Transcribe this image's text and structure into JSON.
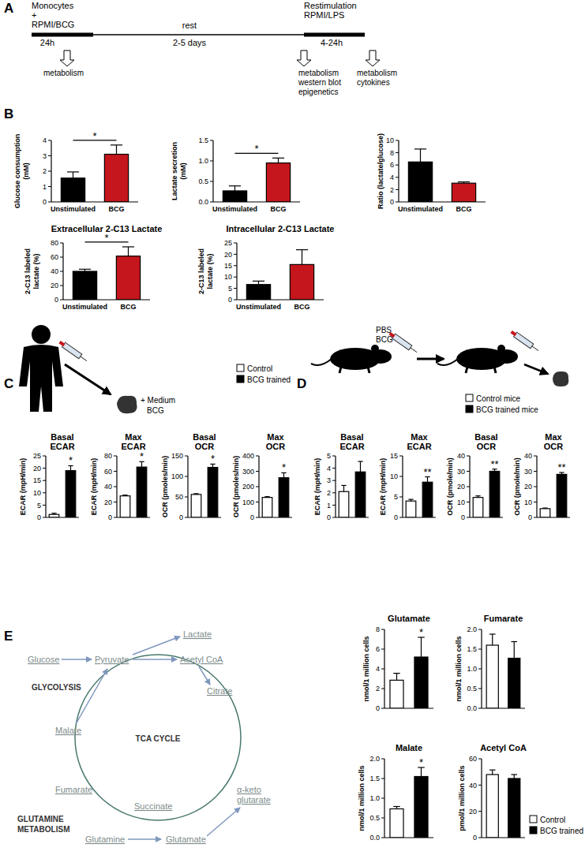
{
  "figure": {
    "panels": [
      "A",
      "B",
      "C",
      "D",
      "E"
    ],
    "timeline": {
      "start": [
        "Monocytes",
        "+",
        "RPMI/BCG"
      ],
      "restim": [
        "Restimulation",
        "RPMI/LPS"
      ],
      "rest": "rest",
      "durations": [
        "24h",
        "2-5 days",
        "4-24h"
      ],
      "readouts": [
        [
          "metabolism"
        ],
        [
          "metabolism",
          "western blot",
          "epigenetics"
        ],
        [
          "metabolism",
          "cytokines"
        ]
      ]
    },
    "human": {
      "labels": [
        "+ Medium",
        "BCG"
      ]
    },
    "mouse": {
      "labels": [
        "PBS",
        "BCG"
      ]
    },
    "legends": [
      [
        {
          "name": "Control",
          "color": "#ffffff"
        },
        {
          "name": "BCG trained",
          "color": "#000000"
        }
      ],
      [
        {
          "name": "Control mice",
          "color": "#ffffff"
        },
        {
          "name": "BCG trained mice",
          "color": "#000000"
        }
      ],
      [
        {
          "name": "Control",
          "color": "#ffffff"
        },
        {
          "name": "BCG trained",
          "color": "#000000"
        }
      ]
    ],
    "pathway": {
      "nodes": [
        "Glucose",
        "Pyruvate",
        "Lactate",
        "Acetyl CoA",
        "Citrate",
        "Malate",
        "Fumarate",
        "Succinate",
        "Glutamine",
        "Glutamate",
        [
          "α-keto",
          "glutarate"
        ]
      ],
      "labels": [
        "GLYCOLYSIS",
        "TCA CYCLE",
        [
          "GLUTAMINE",
          "METABOLISM"
        ]
      ]
    }
  },
  "chart_data": [
    {
      "type": "bar",
      "y_label": [
        "Glucose consumption",
        "(mM)"
      ],
      "categories": [
        "Unstimulated",
        "BCG"
      ],
      "values": [
        1.55,
        3.1
      ],
      "errors": [
        0.4,
        0.6
      ],
      "colors": [
        "#000000",
        "#c4161c"
      ],
      "ylim": [
        0,
        4
      ],
      "yticks": [
        0,
        1,
        2,
        3,
        4
      ],
      "annotation": "*"
    },
    {
      "type": "bar",
      "y_label": [
        "Lactate secretion",
        "(mM)"
      ],
      "categories": [
        "Unstimulated",
        "BCG"
      ],
      "values": [
        0.27,
        0.95
      ],
      "errors": [
        0.12,
        0.12
      ],
      "colors": [
        "#000000",
        "#c4161c"
      ],
      "ylim": [
        0,
        1.5
      ],
      "yticks": [
        {
          "value": 0,
          "label": "0.0"
        },
        0.5,
        {
          "value": 1,
          "label": "1.0"
        },
        1.5
      ],
      "annotation": "*"
    },
    {
      "type": "bar",
      "y_label": "Ratio (lactate/glucose)",
      "categories": [
        "Unstimulated",
        "BCG"
      ],
      "values": [
        6.5,
        3.05
      ],
      "errors": [
        2.1,
        0.2
      ],
      "colors": [
        "#000000",
        "#c4161c"
      ],
      "ylim": [
        0,
        10
      ],
      "yticks": [
        0,
        2,
        4,
        6,
        8,
        10
      ]
    },
    {
      "type": "bar",
      "title": "Extracellular 2-C13 Lactate",
      "y_label": [
        "2-C13 labeled",
        "lactate (%)"
      ],
      "categories": [
        "Unstimulated",
        "BCG"
      ],
      "values": [
        40,
        61.5
      ],
      "errors": [
        3,
        13
      ],
      "colors": [
        "#000000",
        "#c4161c"
      ],
      "ylim": [
        0,
        80
      ],
      "yticks": [
        0,
        20,
        40,
        60,
        80
      ],
      "annotation": "*"
    },
    {
      "type": "bar",
      "title": "Intracellular 2-C13 Lactate",
      "y_label": [
        "2-C13 labeled",
        "lactate (%)"
      ],
      "categories": [
        "Unstimulated",
        "BCG"
      ],
      "values": [
        6.7,
        15.5
      ],
      "errors": [
        1.5,
        6.5
      ],
      "colors": [
        "#000000",
        "#c4161c"
      ],
      "ylim": [
        0,
        25
      ],
      "yticks": [
        0,
        5,
        10,
        15,
        20,
        25
      ]
    },
    {
      "type": "bar",
      "title": [
        "Basal",
        "ECAR"
      ],
      "y_label": "ECAR (mpH/min)",
      "categories": [
        null,
        null
      ],
      "values": [
        1.2,
        19
      ],
      "errors": [
        0.5,
        2
      ],
      "colors": [
        "#ffffff",
        "#000000"
      ],
      "ylim": [
        0,
        25
      ],
      "yticks": [
        0,
        5,
        10,
        15,
        20,
        25
      ],
      "annotation": "*"
    },
    {
      "type": "bar",
      "title": [
        "Max",
        "ECAR"
      ],
      "y_label": "ECAR (mpH/min)",
      "categories": [
        null,
        null
      ],
      "values": [
        28,
        65.5
      ],
      "errors": [
        1,
        7
      ],
      "colors": [
        "#ffffff",
        "#000000"
      ],
      "ylim": [
        0,
        80
      ],
      "yticks": [
        0,
        20,
        40,
        60,
        80
      ],
      "annotation": "*"
    },
    {
      "type": "bar",
      "title": [
        "Basal",
        "OCR"
      ],
      "y_label": "OCR (pmoles/min)",
      "categories": [
        null,
        null
      ],
      "values": [
        56,
        122
      ],
      "errors": [
        2,
        8
      ],
      "colors": [
        "#ffffff",
        "#000000"
      ],
      "ylim": [
        0,
        150
      ],
      "yticks": [
        0,
        50,
        100,
        150
      ],
      "annotation": "*"
    },
    {
      "type": "bar",
      "title": [
        "Max",
        "OCR"
      ],
      "y_label": "OCR (pmoles/min)",
      "categories": [
        null,
        null
      ],
      "values": [
        130,
        258
      ],
      "errors": [
        5,
        32
      ],
      "colors": [
        "#ffffff",
        "#000000"
      ],
      "ylim": [
        0,
        400
      ],
      "yticks": [
        0,
        100,
        200,
        300,
        400
      ],
      "annotation": "*"
    },
    {
      "type": "bar",
      "title": [
        "Basal",
        "ECAR"
      ],
      "y_label": "ECAR (mpH/min)",
      "categories": [
        null,
        null
      ],
      "values": [
        2.1,
        3.7
      ],
      "errors": [
        0.5,
        0.85
      ],
      "colors": [
        "#ffffff",
        "#000000"
      ],
      "ylim": [
        0,
        5
      ],
      "yticks": [
        0,
        1,
        2,
        3,
        4,
        5
      ]
    },
    {
      "type": "bar",
      "title": [
        "Max",
        "ECAR"
      ],
      "y_label": "ECAR (mpH/min)",
      "categories": [
        null,
        null
      ],
      "values": [
        4,
        8.6
      ],
      "errors": [
        0.4,
        1.3
      ],
      "colors": [
        "#ffffff",
        "#000000"
      ],
      "ylim": [
        0,
        15
      ],
      "yticks": [
        0,
        5,
        10,
        15
      ],
      "annotation": "**"
    },
    {
      "type": "bar",
      "title": [
        "Basal",
        "OCR"
      ],
      "y_label": "OCR (pmole/min)",
      "categories": [
        null,
        null
      ],
      "values": [
        13,
        30
      ],
      "errors": [
        1,
        1.4
      ],
      "colors": [
        "#ffffff",
        "#000000"
      ],
      "ylim": [
        0,
        40
      ],
      "yticks": [
        0,
        10,
        20,
        30,
        40
      ],
      "annotation": "**"
    },
    {
      "type": "bar",
      "title": [
        "Max",
        "OCR"
      ],
      "y_label": "OCR (pmole/min)",
      "categories": [
        null,
        null
      ],
      "values": [
        5.7,
        28
      ],
      "errors": [
        0.4,
        1.2
      ],
      "colors": [
        "#ffffff",
        "#000000"
      ],
      "ylim": [
        0,
        40
      ],
      "yticks": [
        0,
        10,
        20,
        30,
        40
      ],
      "annotation": "**"
    },
    {
      "type": "bar",
      "title": "Glutamate",
      "y_label": "nmol/1 million cells",
      "categories": [
        null,
        null
      ],
      "values": [
        2.85,
        5.2
      ],
      "errors": [
        0.7,
        2.0
      ],
      "colors": [
        "#ffffff",
        "#000000"
      ],
      "ylim": [
        0,
        8
      ],
      "yticks": [
        0,
        2,
        4,
        6,
        8
      ],
      "annotation": "*"
    },
    {
      "type": "bar",
      "title": "Fumarate",
      "y_label": "nmol/1 million cells",
      "categories": [
        null,
        null
      ],
      "values": [
        1.6,
        1.27
      ],
      "errors": [
        0.28,
        0.42
      ],
      "colors": [
        "#ffffff",
        "#000000"
      ],
      "ylim": [
        0,
        2
      ],
      "yticks": [
        {
          "value": 0,
          "label": "0.0"
        },
        0.5,
        {
          "value": 1,
          "label": "1.0"
        },
        1.5,
        {
          "value": 2,
          "label": "2.0"
        }
      ]
    },
    {
      "type": "bar",
      "title": "Malate",
      "y_label": "nmol/1 million cells",
      "categories": [
        null,
        null
      ],
      "values": [
        0.73,
        1.55
      ],
      "errors": [
        0.06,
        0.23
      ],
      "colors": [
        "#ffffff",
        "#000000"
      ],
      "ylim": [
        0,
        2
      ],
      "yticks": [
        {
          "value": 0,
          "label": "0.0"
        },
        0.5,
        {
          "value": 1,
          "label": "1.0"
        },
        1.5,
        {
          "value": 2,
          "label": "2.0"
        }
      ],
      "annotation": "*"
    },
    {
      "type": "bar",
      "title": "Acetyl CoA",
      "y_label": "pmol/1 million cells",
      "categories": [
        null,
        null
      ],
      "values": [
        48,
        45
      ],
      "errors": [
        3.5,
        3
      ],
      "colors": [
        "#ffffff",
        "#000000"
      ],
      "ylim": [
        0,
        60
      ],
      "yticks": [
        0,
        20,
        40,
        60
      ]
    }
  ]
}
